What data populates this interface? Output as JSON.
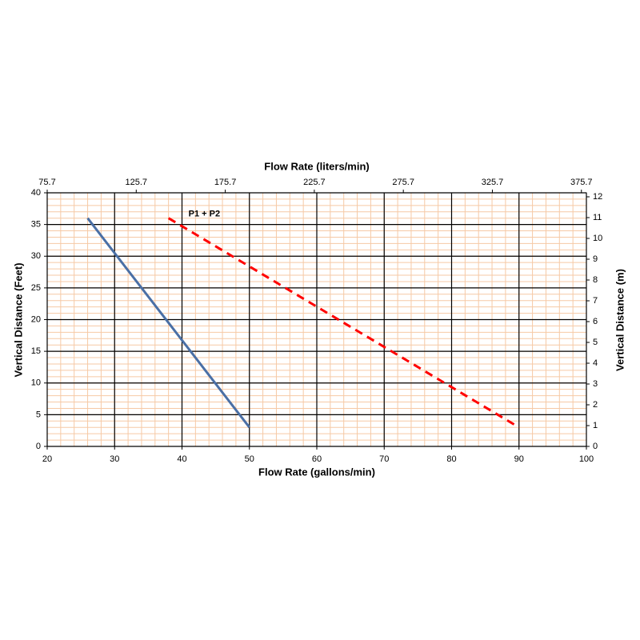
{
  "chart_data": {
    "type": "line",
    "x_label": "Flow Rate (gallons/min)",
    "x2_label": "Flow Rate (liters/min)",
    "y_label": "Vertical Distance (Feet)",
    "y2_label": "Vertical Distance (m)",
    "xlim": [
      20,
      100
    ],
    "xticks": [
      20,
      30,
      40,
      50,
      60,
      70,
      80,
      90,
      100
    ],
    "x2lim": [
      75.7,
      378.5
    ],
    "x2ticks": [
      75.7,
      125.7,
      175.7,
      225.7,
      275.7,
      325.7,
      375.7
    ],
    "ylim": [
      0,
      40
    ],
    "yticks": [
      0,
      5,
      10,
      15,
      20,
      25,
      30,
      35,
      40
    ],
    "y2lim": [
      0,
      12.192
    ],
    "y2ticks": [
      0,
      1,
      2,
      3,
      4,
      5,
      6,
      7,
      8,
      9,
      10,
      11,
      12
    ],
    "grid": true,
    "series": [
      {
        "color": "#4a6fa5",
        "dashed": false,
        "x": [
          26,
          50
        ],
        "values": [
          36,
          3
        ]
      },
      {
        "color": "#ff0000",
        "dashed": true,
        "x": [
          38,
          90
        ],
        "values": [
          36,
          3
        ]
      }
    ],
    "annotations": [
      {
        "text": "P1 + P2",
        "color": "#ff0000",
        "series": 1
      }
    ]
  }
}
